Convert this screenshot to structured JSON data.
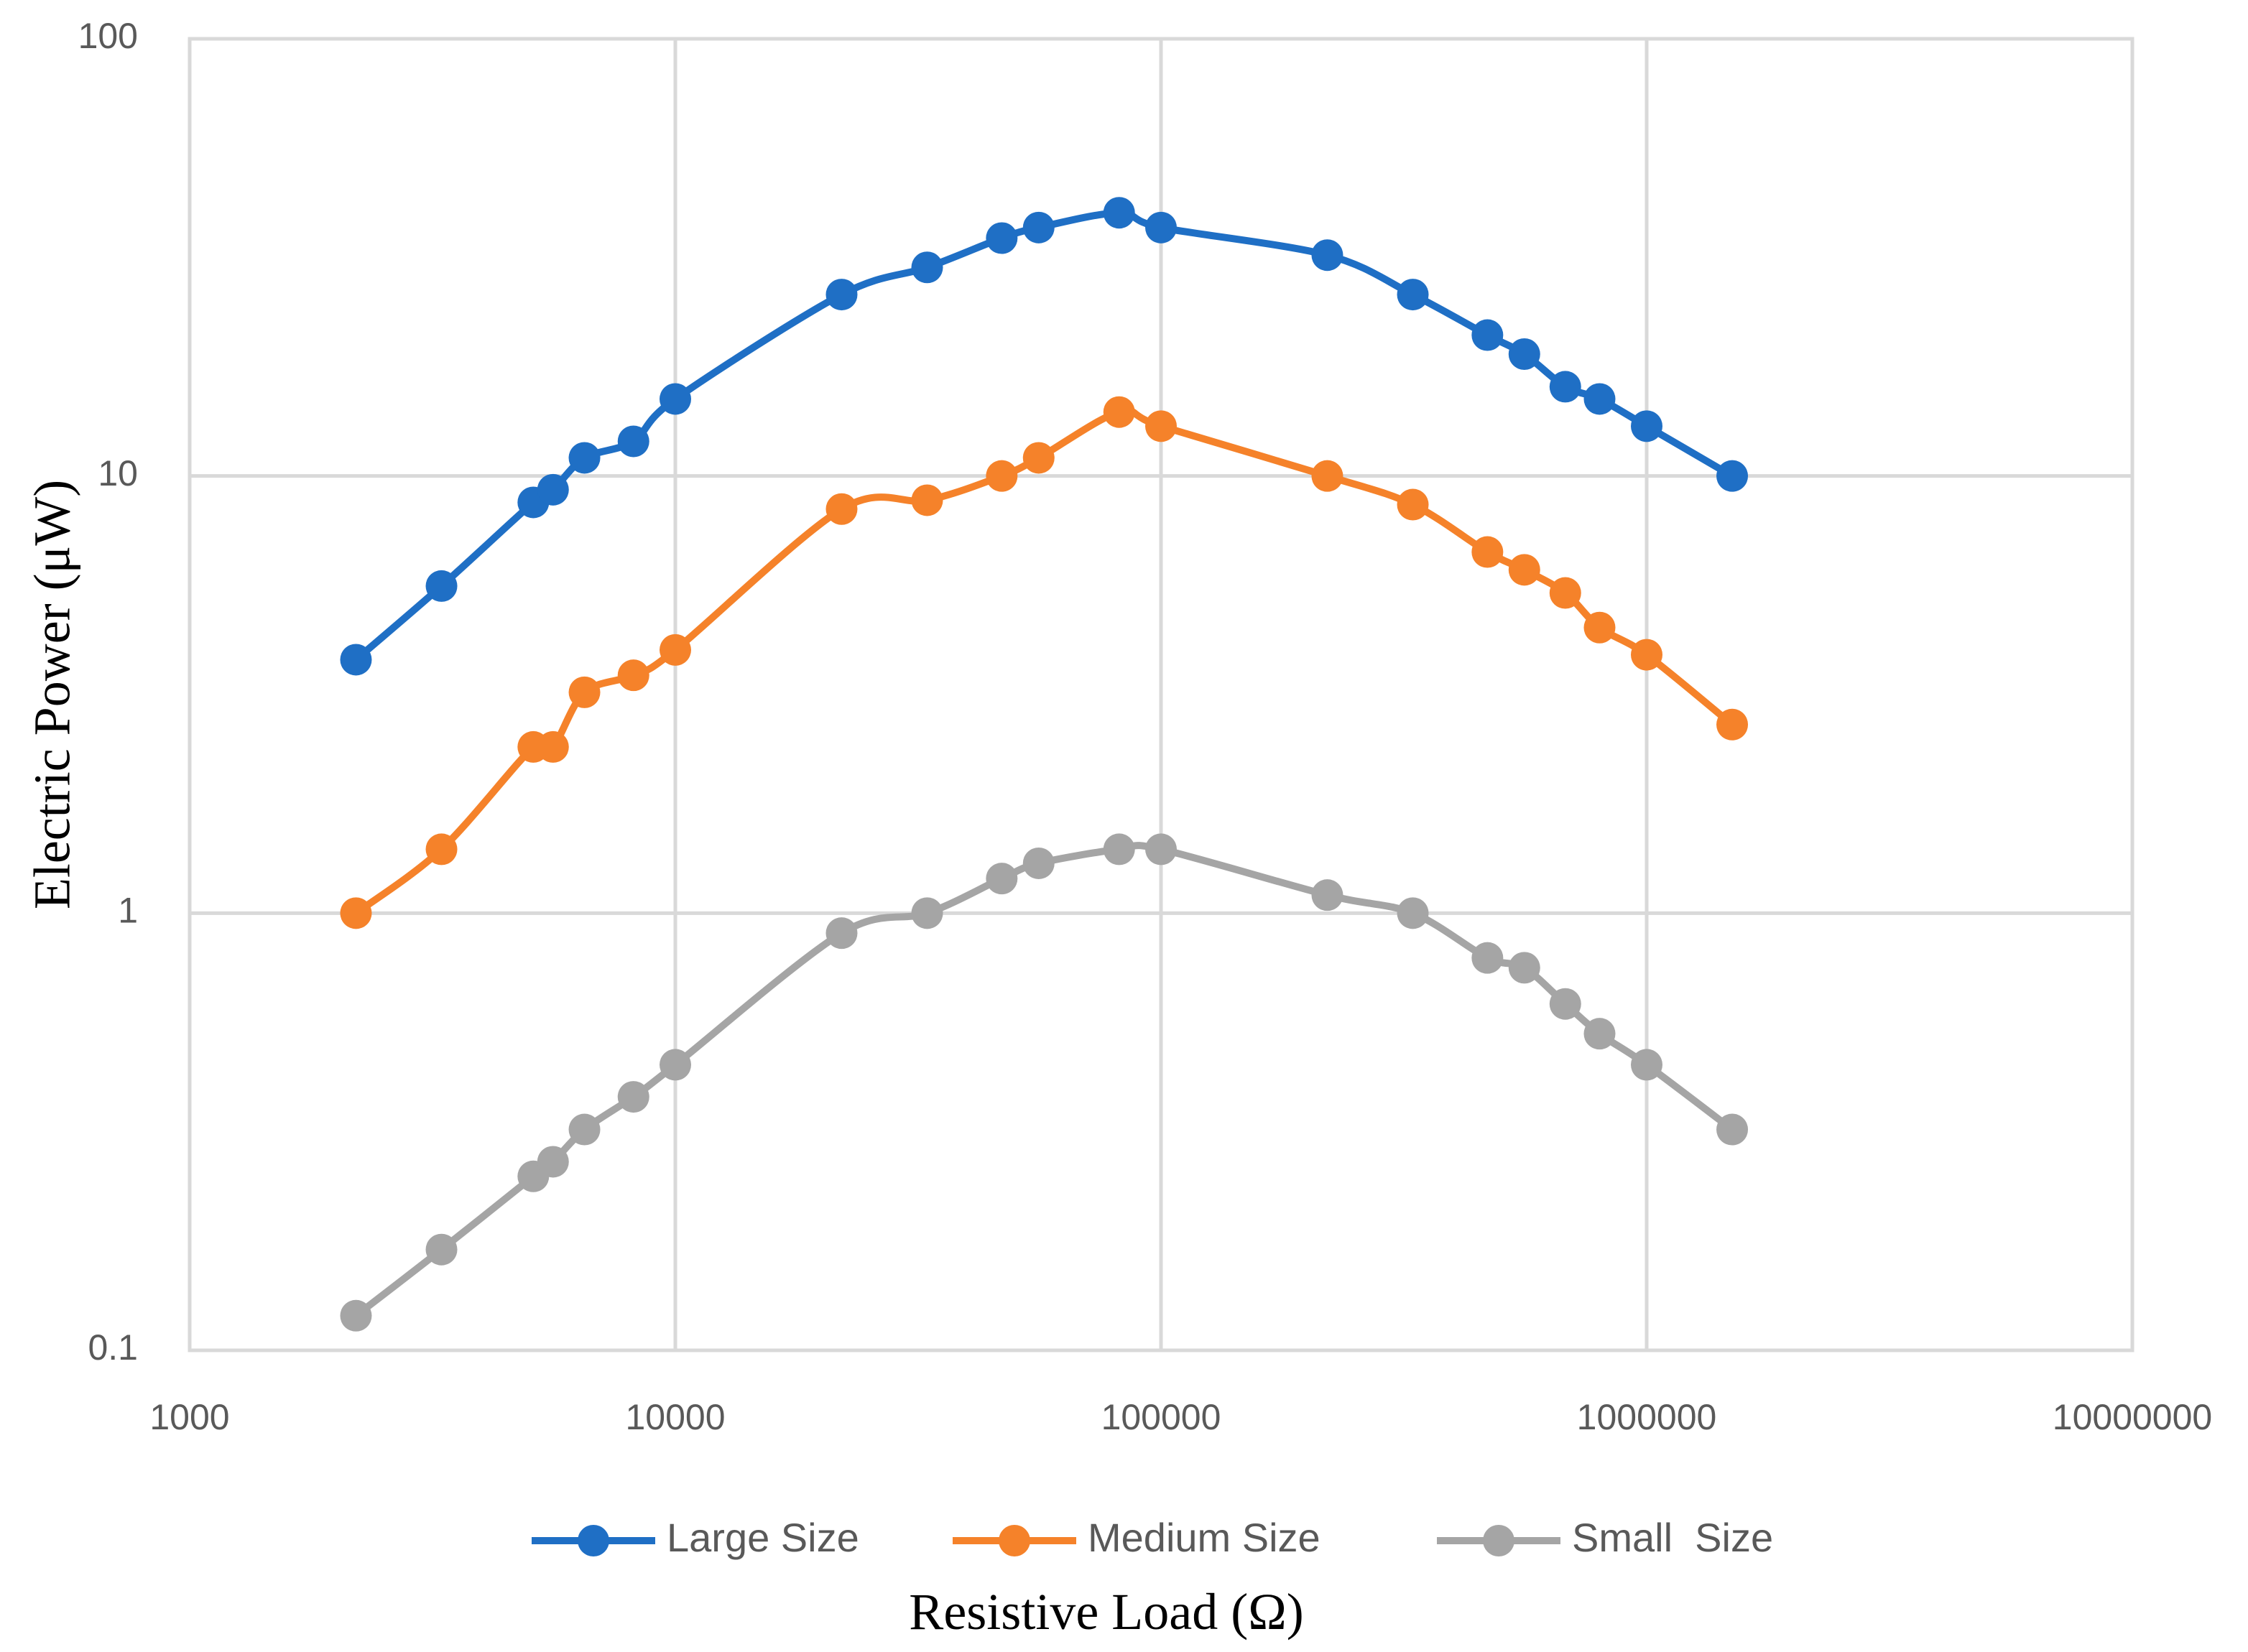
{
  "chart_data": {
    "type": "line",
    "title": "",
    "xlabel": "Resistive Load (Ω)",
    "ylabel": "Electric Power (μW)",
    "xscale": "log",
    "yscale": "log",
    "xlim": [
      1000,
      10000000
    ],
    "ylim": [
      0.1,
      100
    ],
    "xticks": [
      1000,
      10000,
      100000,
      1000000,
      10000000
    ],
    "xtick_labels": [
      "1000",
      "10000",
      "100000",
      "1000000",
      "10000000"
    ],
    "yticks": [
      0.1,
      1,
      10,
      100
    ],
    "ytick_labels": [
      "0.1",
      "1",
      "10",
      "100"
    ],
    "grid": true,
    "legend_position": "bottom",
    "x": [
      2200,
      3300,
      5100,
      5600,
      6500,
      8200,
      10000,
      22000,
      33000,
      47000,
      56000,
      82000,
      100000,
      220000,
      330000,
      470000,
      560000,
      680000,
      800000,
      1000000,
      1500000
    ],
    "series": [
      {
        "name": "Large Size",
        "color": "#1f6fc5",
        "values": [
          3.8,
          5.6,
          8.7,
          9.3,
          11,
          12,
          15,
          26,
          30,
          35,
          37,
          40,
          37,
          32,
          26,
          21,
          19,
          16,
          15,
          13,
          10
        ]
      },
      {
        "name": "Medium Size",
        "color": "#f5822a",
        "values": [
          1.0,
          1.4,
          2.4,
          2.4,
          3.2,
          3.5,
          4.0,
          8.4,
          8.8,
          10,
          11,
          14,
          13,
          10,
          8.6,
          6.7,
          6.1,
          5.4,
          4.5,
          3.9,
          2.7
        ]
      },
      {
        "name": "Small  Size",
        "color": "#a5a5a5",
        "values": [
          0.12,
          0.17,
          0.25,
          0.27,
          0.32,
          0.38,
          0.45,
          0.9,
          1.0,
          1.2,
          1.3,
          1.4,
          1.4,
          1.1,
          1.0,
          0.79,
          0.75,
          0.62,
          0.53,
          0.45,
          0.32
        ]
      }
    ]
  }
}
